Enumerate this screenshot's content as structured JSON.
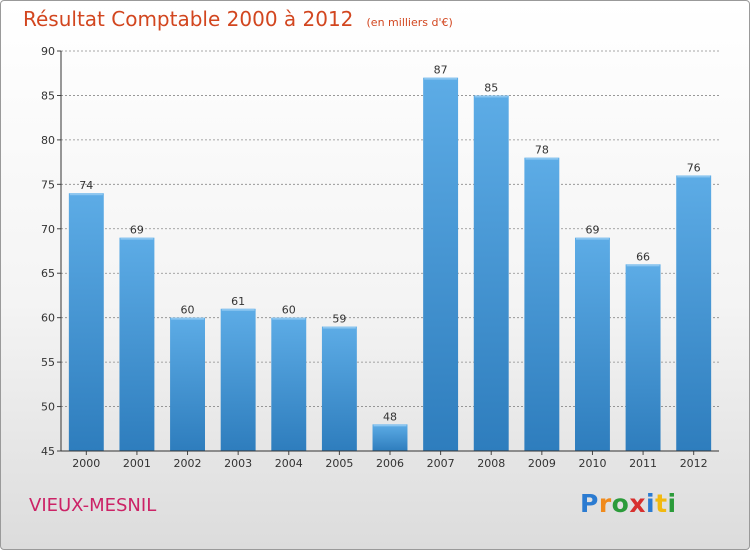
{
  "title": "Résultat Comptable 2000 à 2012",
  "subtitle": "(en milliers d'€)",
  "commune": "VIEUX-MESNIL",
  "logo": {
    "letters": [
      "P",
      "r",
      "o",
      "x",
      "i",
      "t",
      "i"
    ]
  },
  "colors": {
    "title": "#d2461f",
    "commune": "#cc2266",
    "bar_top": "#5dace6",
    "bar_bottom": "#2e7dbd",
    "grid": "#8a8a8a"
  },
  "chart_data": {
    "type": "bar",
    "title": "Résultat Comptable 2000 à 2012",
    "xlabel": "",
    "ylabel": "",
    "categories": [
      "2000",
      "2001",
      "2002",
      "2003",
      "2004",
      "2005",
      "2006",
      "2007",
      "2008",
      "2009",
      "2010",
      "2011",
      "2012"
    ],
    "values": [
      74,
      69,
      60,
      61,
      60,
      59,
      48,
      87,
      85,
      78,
      69,
      66,
      76
    ],
    "ylim": [
      45,
      90
    ],
    "yticks": [
      45,
      50,
      55,
      60,
      65,
      70,
      75,
      80,
      85,
      90
    ],
    "grid": true
  }
}
